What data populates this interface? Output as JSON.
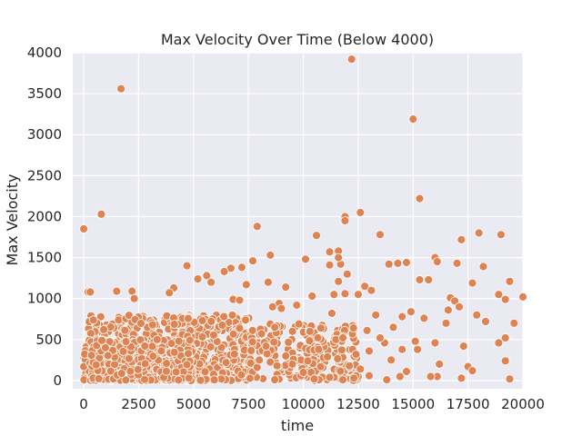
{
  "chart_data": {
    "type": "scatter",
    "title": "Max Velocity Over Time (Below 4000)",
    "xlabel": "time",
    "ylabel": "Max Velocity",
    "xlim": [
      -500,
      20000
    ],
    "ylim": [
      -100,
      4000
    ],
    "x_ticks": [
      0,
      2500,
      5000,
      7500,
      10000,
      12500,
      15000,
      17500,
      20000
    ],
    "y_ticks": [
      0,
      500,
      1000,
      1500,
      2000,
      2500,
      3000,
      3500,
      4000
    ],
    "grid": true,
    "background_color": "#eaeaf2",
    "point_color": "#dd8452",
    "point_edge_color": "#ffffff",
    "series": [
      {
        "points": [
          [
            12200,
            3920
          ],
          [
            1700,
            3560
          ],
          [
            15000,
            3190
          ],
          [
            15300,
            2220
          ],
          [
            800,
            2030
          ],
          [
            12600,
            2050
          ],
          [
            11900,
            2000
          ],
          [
            11900,
            1950
          ],
          [
            0,
            1850
          ],
          [
            7900,
            1880
          ],
          [
            18000,
            1800
          ],
          [
            19000,
            1780
          ],
          [
            13500,
            1780
          ],
          [
            10600,
            1770
          ],
          [
            17200,
            1720
          ],
          [
            11200,
            1570
          ],
          [
            11600,
            1580
          ],
          [
            16000,
            1500
          ],
          [
            16100,
            1450
          ],
          [
            8500,
            1530
          ],
          [
            9200,
            1140
          ],
          [
            14700,
            1440
          ],
          [
            7700,
            1460
          ],
          [
            14300,
            1430
          ],
          [
            10100,
            1480
          ],
          [
            11700,
            1420
          ],
          [
            13900,
            1420
          ],
          [
            7200,
            1380
          ],
          [
            6700,
            1370
          ],
          [
            6400,
            1330
          ],
          [
            4700,
            1400
          ],
          [
            5600,
            1280
          ],
          [
            5200,
            1240
          ],
          [
            5800,
            1200
          ],
          [
            12000,
            1300
          ],
          [
            15300,
            1230
          ],
          [
            15700,
            1230
          ],
          [
            19400,
            1210
          ],
          [
            17700,
            1190
          ],
          [
            11600,
            1210
          ],
          [
            8400,
            1200
          ],
          [
            7400,
            1170
          ],
          [
            12800,
            1150
          ],
          [
            4100,
            1130
          ],
          [
            3900,
            1070
          ],
          [
            18200,
            1390
          ],
          [
            17000,
            1430
          ],
          [
            11200,
            1410
          ],
          [
            200,
            1080
          ],
          [
            300,
            1080
          ],
          [
            1500,
            1090
          ],
          [
            2200,
            1090
          ],
          [
            2300,
            1000
          ],
          [
            13100,
            1100
          ],
          [
            12500,
            1050
          ],
          [
            18900,
            1050
          ],
          [
            19200,
            990
          ],
          [
            20000,
            1020
          ],
          [
            16700,
            1010
          ],
          [
            16900,
            970
          ],
          [
            11400,
            1050
          ],
          [
            11900,
            1060
          ],
          [
            10400,
            1030
          ],
          [
            9700,
            920
          ],
          [
            8900,
            940
          ],
          [
            8600,
            900
          ],
          [
            6800,
            990
          ],
          [
            7100,
            980
          ],
          [
            9000,
            880
          ],
          [
            11300,
            820
          ],
          [
            13300,
            800
          ],
          [
            14500,
            780
          ],
          [
            15500,
            760
          ],
          [
            16600,
            860
          ],
          [
            17100,
            900
          ],
          [
            18300,
            720
          ],
          [
            17900,
            800
          ],
          [
            19600,
            700
          ],
          [
            16500,
            700
          ],
          [
            14100,
            650
          ],
          [
            12900,
            610
          ],
          [
            10800,
            640
          ],
          [
            9800,
            690
          ],
          [
            10300,
            600
          ],
          [
            8700,
            650
          ],
          [
            11800,
            520
          ],
          [
            13700,
            460
          ],
          [
            15100,
            480
          ],
          [
            17300,
            420
          ],
          [
            19200,
            520
          ],
          [
            18900,
            460
          ],
          [
            16000,
            460
          ],
          [
            14500,
            380
          ],
          [
            13000,
            360
          ],
          [
            12400,
            320
          ],
          [
            11100,
            290
          ],
          [
            10200,
            240
          ],
          [
            9500,
            200
          ],
          [
            8800,
            180
          ],
          [
            7900,
            160
          ],
          [
            16100,
            50
          ],
          [
            17200,
            30
          ],
          [
            17500,
            170
          ],
          [
            17700,
            120
          ],
          [
            19200,
            240
          ],
          [
            19400,
            20
          ],
          [
            15200,
            380
          ],
          [
            14400,
            50
          ],
          [
            13800,
            10
          ],
          [
            13000,
            60
          ],
          [
            12300,
            30
          ],
          [
            11800,
            10
          ],
          [
            11200,
            40
          ],
          [
            10500,
            20
          ],
          [
            9900,
            60
          ],
          [
            8700,
            10
          ],
          [
            13500,
            520
          ],
          [
            14900,
            840
          ],
          [
            11600,
            1500
          ],
          [
            10700,
            380
          ],
          [
            12100,
            180
          ],
          [
            12600,
            140
          ],
          [
            14000,
            250
          ],
          [
            14700,
            110
          ],
          [
            15800,
            50
          ],
          [
            16200,
            200
          ],
          [
            10000,
            100
          ],
          [
            9200,
            300
          ],
          [
            8300,
            420
          ],
          [
            8000,
            250
          ]
        ]
      }
    ],
    "density_clusters": [
      {
        "x_range": [
          0,
          7600
        ],
        "y_range": [
          0,
          800
        ],
        "count": 700
      },
      {
        "x_range": [
          0,
          5000
        ],
        "y_range": [
          0,
          500
        ],
        "count": 500
      },
      {
        "x_range": [
          7500,
          12500
        ],
        "y_range": [
          0,
          700
        ],
        "count": 220
      }
    ]
  }
}
